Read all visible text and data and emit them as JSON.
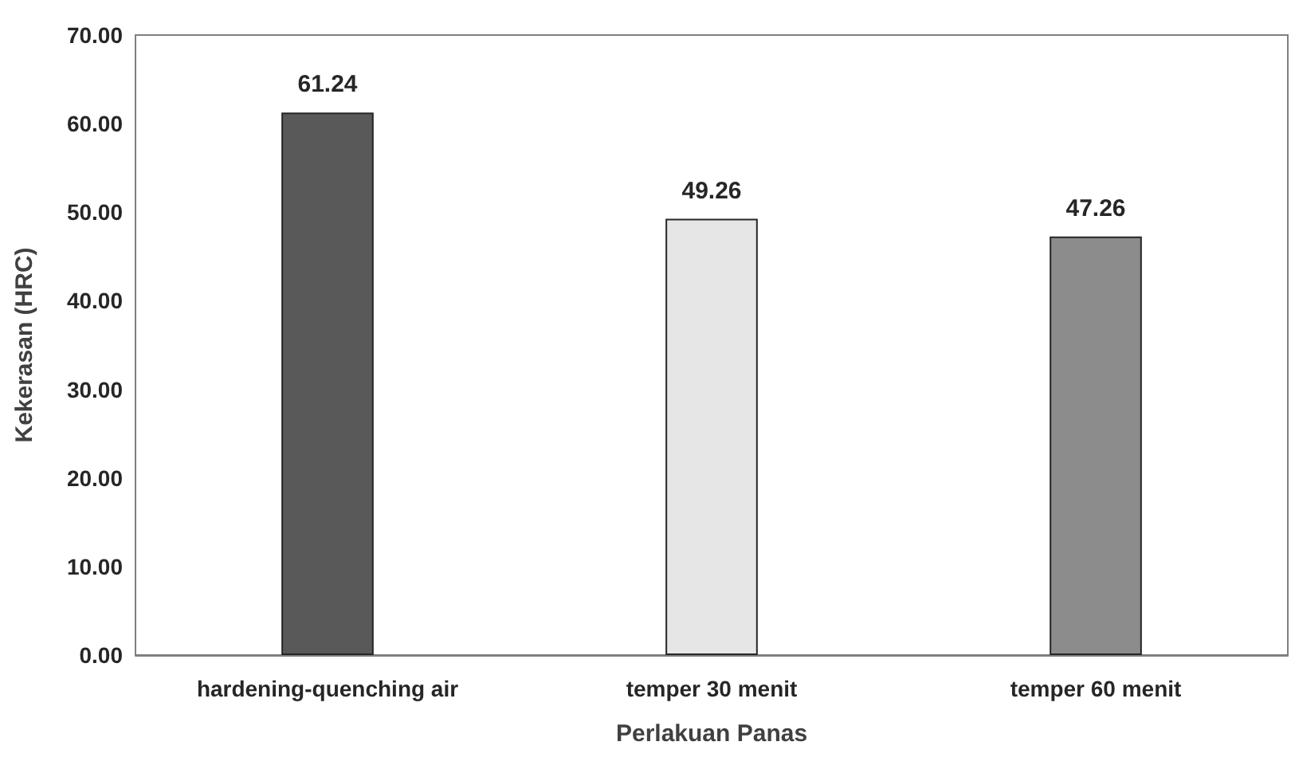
{
  "chart_data": {
    "type": "bar",
    "xlabel": "Perlakuan Panas",
    "ylabel": "Kekerasan (HRC)",
    "categories": [
      "hardening-quenching air",
      "temper 30 menit",
      "temper 60 menit"
    ],
    "values": [
      61.24,
      49.26,
      47.26
    ],
    "colors": [
      "#595959",
      "#e6e6e6",
      "#8c8c8c"
    ],
    "ylim": [
      0,
      70
    ],
    "yticks": [
      {
        "value": 0,
        "label": "0.00"
      },
      {
        "value": 10,
        "label": "10.00"
      },
      {
        "value": 20,
        "label": "20.00"
      },
      {
        "value": 30,
        "label": "30.00"
      },
      {
        "value": 40,
        "label": "40.00"
      },
      {
        "value": 50,
        "label": "50.00"
      },
      {
        "value": 60,
        "label": "60.00"
      },
      {
        "value": 70,
        "label": "70.00"
      }
    ],
    "data_labels": true,
    "grid": false
  }
}
